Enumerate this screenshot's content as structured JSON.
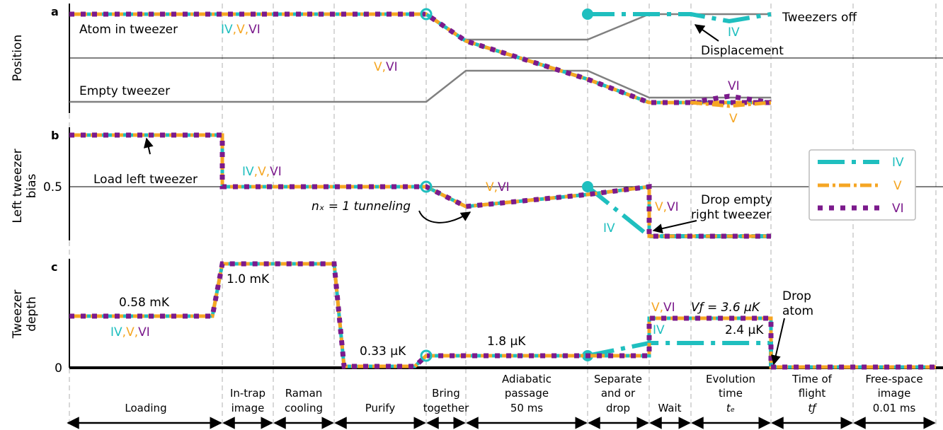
{
  "colors": {
    "IV": "#1fbfbf",
    "V": "#f5a623",
    "VI": "#7b1a8c",
    "gray": "#808080",
    "grid": "#cccccc"
  },
  "panels": {
    "a": {
      "letter": "a",
      "ylabel": [
        "Position"
      ]
    },
    "b": {
      "letter": "b",
      "ylabel": [
        "Left tweezer",
        "bias"
      ],
      "tick": "0.5"
    },
    "c": {
      "letter": "c",
      "ylabel": [
        "Tweezer",
        "depth"
      ],
      "tick": "0"
    }
  },
  "legend": [
    {
      "key": "IV",
      "label": "IV"
    },
    {
      "key": "V",
      "label": "V"
    },
    {
      "key": "VI",
      "label": "VI"
    }
  ],
  "annotations": {
    "atom_in_tweezer": "Atom in tweezer",
    "empty_tweezer": "Empty tweezer",
    "tweezers_off": "Tweezers off",
    "displacement": "Displacement",
    "load_left": "Load left tweezer",
    "nx_tunneling": "nₓ = 1 tunneling",
    "drop_empty": [
      "Drop empty",
      "right tweezer"
    ],
    "depth_058": "0.58 mK",
    "depth_10": "1.0 mK",
    "depth_033": "0.33 μK",
    "depth_18": "1.8 μK",
    "vf": "Vƒ = 3.6 μK",
    "depth_24": "2.4 μK",
    "drop_atom": [
      "Drop",
      "atom"
    ]
  },
  "labels": {
    "IV": "IV",
    "V": "V",
    "VI": "VI",
    "comma": ","
  },
  "phases": [
    {
      "lines": [
        "",
        "",
        "Loading"
      ]
    },
    {
      "lines": [
        "In-trap",
        "image"
      ]
    },
    {
      "lines": [
        "Raman",
        "cooling"
      ]
    },
    {
      "lines": [
        "",
        "",
        "Purify"
      ]
    },
    {
      "lines": [
        "Bring",
        "together"
      ]
    },
    {
      "lines": [
        "Adiabatic",
        "passage",
        "50 ms"
      ]
    },
    {
      "lines": [
        "Separate",
        "and or",
        "drop"
      ]
    },
    {
      "lines": [
        "",
        "",
        "Wait"
      ]
    },
    {
      "lines": [
        "Evolution",
        "time",
        "tₑ"
      ]
    },
    {
      "lines": [
        "Time of",
        "flight",
        "tƒ"
      ]
    },
    {
      "lines": [
        "Free-space",
        "image",
        "0.01 ms"
      ]
    }
  ]
}
